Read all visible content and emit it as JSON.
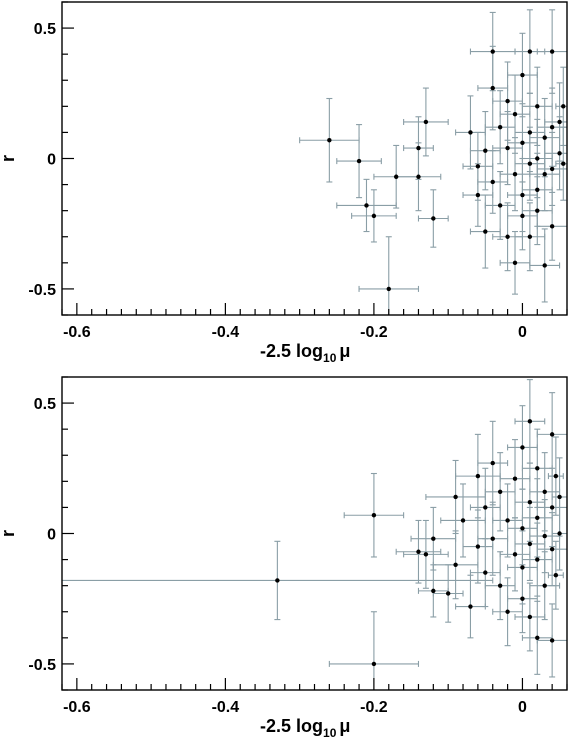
{
  "chart_data": [
    {
      "type": "scatter",
      "title": "",
      "xlabel": "-2.5 log",
      "xlabel_sub": "10",
      "xlabel_tail": "μ",
      "ylabel": "r",
      "xlim": [
        -0.62,
        0.06
      ],
      "ylim": [
        -0.6,
        0.6
      ],
      "xticks": [
        -0.6,
        -0.4,
        -0.2,
        0
      ],
      "xtick_labels": [
        "-0.6",
        "-0.4",
        "-0.2",
        "0"
      ],
      "yticks": [
        -0.5,
        0,
        0.5
      ],
      "ytick_labels": [
        "-0.5",
        "0",
        "0.5"
      ],
      "grid": false,
      "points": [
        {
          "x": -0.26,
          "y": 0.07,
          "xerr": 0.04,
          "yerr": 0.16
        },
        {
          "x": -0.22,
          "y": -0.01,
          "xerr": 0.03,
          "yerr": 0.14
        },
        {
          "x": -0.21,
          "y": -0.18,
          "xerr": 0.04,
          "yerr": 0.1
        },
        {
          "x": -0.2,
          "y": -0.22,
          "xerr": 0.03,
          "yerr": 0.1
        },
        {
          "x": -0.18,
          "y": -0.5,
          "xerr": 0.04,
          "yerr": 0.2
        },
        {
          "x": -0.17,
          "y": -0.07,
          "xerr": 0.03,
          "yerr": 0.12
        },
        {
          "x": -0.14,
          "y": -0.07,
          "xerr": 0.03,
          "yerr": 0.13
        },
        {
          "x": -0.14,
          "y": 0.04,
          "xerr": 0.02,
          "yerr": 0.12
        },
        {
          "x": -0.13,
          "y": 0.14,
          "xerr": 0.03,
          "yerr": 0.13
        },
        {
          "x": -0.12,
          "y": -0.23,
          "xerr": 0.02,
          "yerr": 0.11
        },
        {
          "x": -0.07,
          "y": 0.1,
          "xerr": 0.02,
          "yerr": 0.14
        },
        {
          "x": -0.06,
          "y": -0.03,
          "xerr": 0.02,
          "yerr": 0.13
        },
        {
          "x": -0.06,
          "y": -0.14,
          "xerr": 0.02,
          "yerr": 0.12
        },
        {
          "x": -0.05,
          "y": 0.03,
          "xerr": 0.02,
          "yerr": 0.15
        },
        {
          "x": -0.05,
          "y": -0.28,
          "xerr": 0.02,
          "yerr": 0.14
        },
        {
          "x": -0.04,
          "y": 0.41,
          "xerr": 0.03,
          "yerr": 0.15
        },
        {
          "x": -0.04,
          "y": 0.27,
          "xerr": 0.02,
          "yerr": 0.16
        },
        {
          "x": -0.04,
          "y": -0.09,
          "xerr": 0.02,
          "yerr": 0.12
        },
        {
          "x": -0.03,
          "y": 0.12,
          "xerr": 0.02,
          "yerr": 0.14
        },
        {
          "x": -0.03,
          "y": -0.18,
          "xerr": 0.02,
          "yerr": 0.13
        },
        {
          "x": -0.02,
          "y": 0.22,
          "xerr": 0.02,
          "yerr": 0.15
        },
        {
          "x": -0.02,
          "y": 0.04,
          "xerr": 0.02,
          "yerr": 0.14
        },
        {
          "x": -0.02,
          "y": -0.3,
          "xerr": 0.02,
          "yerr": 0.13
        },
        {
          "x": -0.01,
          "y": 0.17,
          "xerr": 0.02,
          "yerr": 0.15
        },
        {
          "x": -0.01,
          "y": -0.06,
          "xerr": 0.02,
          "yerr": 0.14
        },
        {
          "x": -0.01,
          "y": -0.4,
          "xerr": 0.02,
          "yerr": 0.12
        },
        {
          "x": 0.0,
          "y": 0.32,
          "xerr": 0.02,
          "yerr": 0.16
        },
        {
          "x": 0.0,
          "y": 0.06,
          "xerr": 0.02,
          "yerr": 0.15
        },
        {
          "x": 0.0,
          "y": -0.14,
          "xerr": 0.02,
          "yerr": 0.14
        },
        {
          "x": 0.0,
          "y": -0.22,
          "xerr": 0.02,
          "yerr": 0.13
        },
        {
          "x": 0.01,
          "y": 0.41,
          "xerr": 0.02,
          "yerr": 0.16
        },
        {
          "x": 0.01,
          "y": 0.1,
          "xerr": 0.02,
          "yerr": 0.15
        },
        {
          "x": 0.01,
          "y": -0.02,
          "xerr": 0.02,
          "yerr": 0.14
        },
        {
          "x": 0.01,
          "y": -0.3,
          "xerr": 0.02,
          "yerr": 0.13
        },
        {
          "x": 0.02,
          "y": 0.2,
          "xerr": 0.02,
          "yerr": 0.15
        },
        {
          "x": 0.02,
          "y": 0.0,
          "xerr": 0.02,
          "yerr": 0.15
        },
        {
          "x": 0.02,
          "y": -0.12,
          "xerr": 0.02,
          "yerr": 0.14
        },
        {
          "x": 0.02,
          "y": -0.2,
          "xerr": 0.02,
          "yerr": 0.13
        },
        {
          "x": 0.03,
          "y": 0.08,
          "xerr": 0.02,
          "yerr": 0.15
        },
        {
          "x": 0.03,
          "y": -0.06,
          "xerr": 0.02,
          "yerr": 0.14
        },
        {
          "x": 0.03,
          "y": -0.41,
          "xerr": 0.02,
          "yerr": 0.14
        },
        {
          "x": 0.04,
          "y": 0.41,
          "xerr": 0.02,
          "yerr": 0.16
        },
        {
          "x": 0.04,
          "y": 0.12,
          "xerr": 0.02,
          "yerr": 0.15
        },
        {
          "x": 0.04,
          "y": -0.04,
          "xerr": 0.02,
          "yerr": 0.14
        },
        {
          "x": 0.04,
          "y": -0.26,
          "xerr": 0.02,
          "yerr": 0.13
        },
        {
          "x": 0.05,
          "y": 0.14,
          "xerr": 0.02,
          "yerr": 0.15
        },
        {
          "x": 0.05,
          "y": 0.02,
          "xerr": 0.02,
          "yerr": 0.14
        },
        {
          "x": 0.055,
          "y": 0.2,
          "xerr": 0.01,
          "yerr": 0.15
        },
        {
          "x": 0.055,
          "y": -0.02,
          "xerr": 0.01,
          "yerr": 0.14
        }
      ]
    },
    {
      "type": "scatter",
      "title": "",
      "xlabel": "-2.5 log",
      "xlabel_sub": "10",
      "xlabel_tail": "μ",
      "ylabel": "r",
      "xlim": [
        -0.62,
        0.06
      ],
      "ylim": [
        -0.6,
        0.6
      ],
      "xticks": [
        -0.6,
        -0.4,
        -0.2,
        0
      ],
      "xtick_labels": [
        "-0.6",
        "-0.4",
        "-0.2",
        "0"
      ],
      "yticks": [
        -0.5,
        0,
        0.5
      ],
      "ytick_labels": [
        "-0.5",
        "0",
        "0.5"
      ],
      "grid": false,
      "points": [
        {
          "x": -0.33,
          "y": -0.18,
          "xerr": 0.29,
          "yerr": 0.15
        },
        {
          "x": -0.2,
          "y": 0.07,
          "xerr": 0.04,
          "yerr": 0.16
        },
        {
          "x": -0.2,
          "y": -0.5,
          "xerr": 0.06,
          "yerr": 0.2
        },
        {
          "x": -0.14,
          "y": -0.07,
          "xerr": 0.03,
          "yerr": 0.12
        },
        {
          "x": -0.13,
          "y": -0.08,
          "xerr": 0.03,
          "yerr": 0.13
        },
        {
          "x": -0.12,
          "y": -0.02,
          "xerr": 0.03,
          "yerr": 0.12
        },
        {
          "x": -0.12,
          "y": -0.22,
          "xerr": 0.02,
          "yerr": 0.1
        },
        {
          "x": -0.1,
          "y": -0.23,
          "xerr": 0.02,
          "yerr": 0.11
        },
        {
          "x": -0.09,
          "y": 0.14,
          "xerr": 0.04,
          "yerr": 0.14
        },
        {
          "x": -0.09,
          "y": -0.12,
          "xerr": 0.03,
          "yerr": 0.13
        },
        {
          "x": -0.08,
          "y": 0.05,
          "xerr": 0.03,
          "yerr": 0.14
        },
        {
          "x": -0.07,
          "y": -0.28,
          "xerr": 0.02,
          "yerr": 0.12
        },
        {
          "x": -0.06,
          "y": 0.22,
          "xerr": 0.03,
          "yerr": 0.16
        },
        {
          "x": -0.06,
          "y": -0.05,
          "xerr": 0.02,
          "yerr": 0.14
        },
        {
          "x": -0.05,
          "y": 0.1,
          "xerr": 0.02,
          "yerr": 0.15
        },
        {
          "x": -0.05,
          "y": -0.15,
          "xerr": 0.02,
          "yerr": 0.13
        },
        {
          "x": -0.04,
          "y": 0.27,
          "xerr": 0.02,
          "yerr": 0.16
        },
        {
          "x": -0.04,
          "y": -0.02,
          "xerr": 0.02,
          "yerr": 0.14
        },
        {
          "x": -0.03,
          "y": 0.16,
          "xerr": 0.02,
          "yerr": 0.15
        },
        {
          "x": -0.03,
          "y": -0.2,
          "xerr": 0.02,
          "yerr": 0.13
        },
        {
          "x": -0.02,
          "y": 0.05,
          "xerr": 0.02,
          "yerr": 0.14
        },
        {
          "x": -0.02,
          "y": -0.3,
          "xerr": 0.02,
          "yerr": 0.13
        },
        {
          "x": -0.01,
          "y": 0.21,
          "xerr": 0.02,
          "yerr": 0.15
        },
        {
          "x": -0.01,
          "y": -0.08,
          "xerr": 0.02,
          "yerr": 0.14
        },
        {
          "x": 0.0,
          "y": 0.33,
          "xerr": 0.02,
          "yerr": 0.16
        },
        {
          "x": 0.0,
          "y": 0.02,
          "xerr": 0.02,
          "yerr": 0.15
        },
        {
          "x": 0.0,
          "y": -0.13,
          "xerr": 0.02,
          "yerr": 0.14
        },
        {
          "x": 0.0,
          "y": -0.25,
          "xerr": 0.02,
          "yerr": 0.13
        },
        {
          "x": 0.01,
          "y": 0.43,
          "xerr": 0.02,
          "yerr": 0.16
        },
        {
          "x": 0.01,
          "y": 0.12,
          "xerr": 0.02,
          "yerr": 0.15
        },
        {
          "x": 0.01,
          "y": -0.04,
          "xerr": 0.02,
          "yerr": 0.14
        },
        {
          "x": 0.01,
          "y": -0.32,
          "xerr": 0.02,
          "yerr": 0.13
        },
        {
          "x": 0.02,
          "y": 0.25,
          "xerr": 0.02,
          "yerr": 0.15
        },
        {
          "x": 0.02,
          "y": 0.06,
          "xerr": 0.02,
          "yerr": 0.15
        },
        {
          "x": 0.02,
          "y": -0.1,
          "xerr": 0.02,
          "yerr": 0.14
        },
        {
          "x": 0.02,
          "y": -0.4,
          "xerr": 0.02,
          "yerr": 0.14
        },
        {
          "x": 0.03,
          "y": 0.16,
          "xerr": 0.02,
          "yerr": 0.15
        },
        {
          "x": 0.03,
          "y": -0.01,
          "xerr": 0.02,
          "yerr": 0.14
        },
        {
          "x": 0.03,
          "y": -0.2,
          "xerr": 0.02,
          "yerr": 0.13
        },
        {
          "x": 0.04,
          "y": 0.38,
          "xerr": 0.02,
          "yerr": 0.16
        },
        {
          "x": 0.04,
          "y": 0.1,
          "xerr": 0.02,
          "yerr": 0.15
        },
        {
          "x": 0.04,
          "y": -0.06,
          "xerr": 0.02,
          "yerr": 0.14
        },
        {
          "x": 0.04,
          "y": -0.41,
          "xerr": 0.02,
          "yerr": 0.14
        },
        {
          "x": 0.045,
          "y": 0.22,
          "xerr": 0.01,
          "yerr": 0.15
        },
        {
          "x": 0.045,
          "y": -0.16,
          "xerr": 0.01,
          "yerr": 0.13
        },
        {
          "x": 0.05,
          "y": 0.14,
          "xerr": 0.01,
          "yerr": 0.15
        },
        {
          "x": 0.05,
          "y": 0.0,
          "xerr": 0.01,
          "yerr": 0.14
        }
      ]
    }
  ]
}
